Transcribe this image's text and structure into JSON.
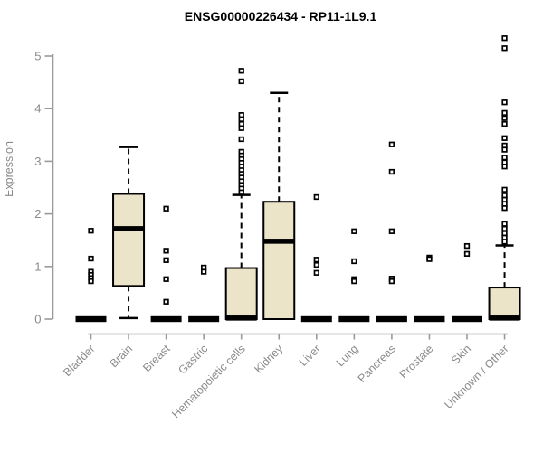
{
  "chart_data": {
    "type": "boxplot",
    "title": "ENSG00000226434 - RP11-1L9.1",
    "ylabel": "Expression",
    "xlabel": "",
    "ylim": [
      0,
      5.4
    ],
    "yticks": [
      0,
      1,
      2,
      3,
      4,
      5
    ],
    "grid": false,
    "legend": false,
    "colors": {
      "box_fill": "#ece4c9",
      "box_stroke": "#000000",
      "median": "#000000",
      "whisker": "#000000",
      "outlier_stroke": "#000000",
      "outlier_fill": "#ffffff",
      "axis": "#9a9a9a",
      "tick_text": "#8a8a8a",
      "title_text": "#000000",
      "background": "#ffffff"
    },
    "categories": [
      "Bladder",
      "Brain",
      "Breast",
      "Gastric",
      "Hematopoietic cells",
      "Kidney",
      "Liver",
      "Lung",
      "Pancreas",
      "Prostate",
      "Skin",
      "Unknown / Other"
    ],
    "boxes": [
      {
        "label": "Bladder",
        "collapsed": true,
        "median": 0,
        "q1": 0,
        "q3": 0,
        "whisker_low": 0,
        "whisker_high": 0,
        "outliers": [
          1.68,
          1.15,
          0.9,
          0.84,
          0.78,
          0.72
        ]
      },
      {
        "label": "Brain",
        "collapsed": false,
        "median": 1.72,
        "q1": 0.63,
        "q3": 2.38,
        "whisker_low": 0.02,
        "whisker_high": 3.27,
        "outliers": []
      },
      {
        "label": "Breast",
        "collapsed": true,
        "median": 0,
        "q1": 0,
        "q3": 0,
        "whisker_low": 0,
        "whisker_high": 0,
        "outliers": [
          2.1,
          1.3,
          1.12,
          0.76,
          0.33
        ]
      },
      {
        "label": "Gastric",
        "collapsed": true,
        "median": 0,
        "q1": 0,
        "q3": 0,
        "whisker_low": 0,
        "whisker_high": 0,
        "outliers": [
          0.98,
          0.9
        ]
      },
      {
        "label": "Hematopoietic cells",
        "collapsed": false,
        "median": 0.02,
        "q1": 0,
        "q3": 0.97,
        "whisker_low": null,
        "whisker_high": 2.36,
        "outliers": [
          4.72,
          4.52,
          3.88,
          3.8,
          3.71,
          3.63,
          3.42,
          3.18,
          3.11,
          3.04,
          2.97,
          2.9,
          2.83,
          2.76,
          2.69,
          2.62,
          2.55,
          2.48,
          2.41
        ]
      },
      {
        "label": "Kidney",
        "collapsed": false,
        "median": 1.48,
        "q1": 0,
        "q3": 2.23,
        "whisker_low": null,
        "whisker_high": 4.3,
        "outliers": []
      },
      {
        "label": "Liver",
        "collapsed": true,
        "median": 0,
        "q1": 0,
        "q3": 0,
        "whisker_low": 0,
        "whisker_high": 0,
        "outliers": [
          2.32,
          1.13,
          1.03,
          0.88
        ]
      },
      {
        "label": "Lung",
        "collapsed": true,
        "median": 0,
        "q1": 0,
        "q3": 0,
        "whisker_low": 0,
        "whisker_high": 0,
        "outliers": [
          1.67,
          1.1,
          0.76,
          0.72
        ]
      },
      {
        "label": "Pancreas",
        "collapsed": true,
        "median": 0,
        "q1": 0,
        "q3": 0,
        "whisker_low": 0,
        "whisker_high": 0,
        "outliers": [
          3.32,
          2.8,
          1.67,
          0.77,
          0.72
        ]
      },
      {
        "label": "Prostate",
        "collapsed": true,
        "median": 0,
        "q1": 0,
        "q3": 0,
        "whisker_low": 0,
        "whisker_high": 0,
        "outliers": [
          1.17,
          1.14
        ]
      },
      {
        "label": "Skin",
        "collapsed": true,
        "median": 0,
        "q1": 0,
        "q3": 0,
        "whisker_low": 0,
        "whisker_high": 0,
        "outliers": [
          1.39,
          1.24
        ]
      },
      {
        "label": "Unknown / Other",
        "collapsed": false,
        "median": 0.02,
        "q1": 0,
        "q3": 0.6,
        "whisker_low": null,
        "whisker_high": 1.4,
        "outliers": [
          5.34,
          5.15,
          4.12,
          3.92,
          3.82,
          3.71,
          3.44,
          3.3,
          3.22,
          3.07,
          2.98,
          2.9,
          2.46,
          2.35,
          2.27,
          2.19,
          2.11,
          1.81,
          1.72,
          1.63,
          1.55,
          1.47
        ]
      }
    ]
  }
}
